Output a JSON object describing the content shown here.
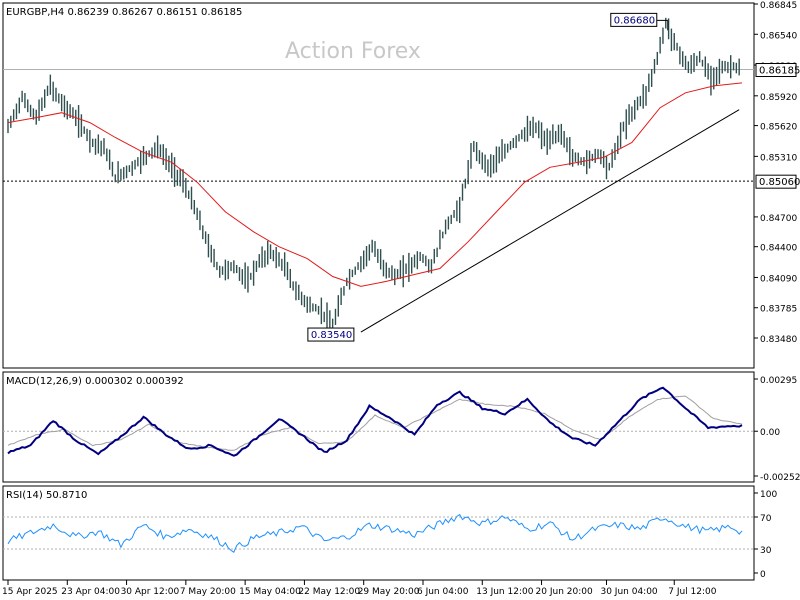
{
  "header": {
    "symbol_line": "EURGBP,H4  0.86239 0.86267 0.86151 0.86185",
    "watermark": "Action Forex"
  },
  "chart_data": [
    {
      "type": "candlestick",
      "title": "EURGBP,H4",
      "ylim": [
        0.8348,
        0.86845
      ],
      "yticks": [
        "0.86845",
        "0.86540",
        "0.86230",
        "0.85920",
        "0.85620",
        "0.85310",
        "0.84700",
        "0.84400",
        "0.84090",
        "0.83785",
        "0.83480"
      ],
      "xticks": [
        "15 Apr 2025",
        "23 Apr 04:00",
        "30 Apr 12:00",
        "7 May 20:00",
        "15 May 04:00",
        "22 May 12:00",
        "29 May 20:00",
        "6 Jun 04:00",
        "13 Jun 12:00",
        "20 Jun 20:00",
        "30 Jun 04:00",
        "7 Jul 12:00"
      ],
      "price_path": [
        [
          0,
          0.856
        ],
        [
          5,
          0.859
        ],
        [
          10,
          0.857
        ],
        [
          15,
          0.8602
        ],
        [
          19,
          0.8585
        ],
        [
          24,
          0.857
        ],
        [
          30,
          0.8545
        ],
        [
          34,
          0.854
        ],
        [
          38,
          0.851
        ],
        [
          44,
          0.852
        ],
        [
          48,
          0.853
        ],
        [
          53,
          0.854
        ],
        [
          58,
          0.852
        ],
        [
          62,
          0.8505
        ],
        [
          66,
          0.848
        ],
        [
          71,
          0.844
        ],
        [
          75,
          0.8415
        ],
        [
          80,
          0.842
        ],
        [
          85,
          0.8405
        ],
        [
          89,
          0.8425
        ],
        [
          93,
          0.8435
        ],
        [
          98,
          0.842
        ],
        [
          102,
          0.8395
        ],
        [
          107,
          0.838
        ],
        [
          111,
          0.8375
        ],
        [
          115,
          0.836
        ],
        [
          120,
          0.8405
        ],
        [
          124,
          0.842
        ],
        [
          129,
          0.844
        ],
        [
          133,
          0.842
        ],
        [
          137,
          0.841
        ],
        [
          142,
          0.842
        ],
        [
          146,
          0.843
        ],
        [
          150,
          0.842
        ],
        [
          155,
          0.846
        ],
        [
          160,
          0.848
        ],
        [
          165,
          0.854
        ],
        [
          170,
          0.852
        ],
        [
          174,
          0.853
        ],
        [
          179,
          0.8545
        ],
        [
          183,
          0.8555
        ],
        [
          187,
          0.856
        ],
        [
          191,
          0.8545
        ],
        [
          196,
          0.8555
        ],
        [
          200,
          0.853
        ],
        [
          205,
          0.8525
        ],
        [
          209,
          0.8535
        ],
        [
          213,
          0.852
        ],
        [
          218,
          0.856
        ],
        [
          222,
          0.858
        ],
        [
          226,
          0.8595
        ],
        [
          230,
          0.863
        ],
        [
          233,
          0.8665
        ],
        [
          237,
          0.864
        ],
        [
          241,
          0.862
        ],
        [
          245,
          0.863
        ],
        [
          249,
          0.861
        ],
        [
          253,
          0.862
        ],
        [
          257,
          0.8622
        ],
        [
          260,
          0.86185
        ]
      ],
      "ma_path": [
        [
          0,
          0.8565
        ],
        [
          10,
          0.857
        ],
        [
          19,
          0.8575
        ],
        [
          29,
          0.8565
        ],
        [
          38,
          0.855
        ],
        [
          48,
          0.8535
        ],
        [
          58,
          0.8525
        ],
        [
          67,
          0.8505
        ],
        [
          77,
          0.8475
        ],
        [
          87,
          0.8455
        ],
        [
          96,
          0.844
        ],
        [
          106,
          0.8428
        ],
        [
          115,
          0.841
        ],
        [
          125,
          0.84
        ],
        [
          134,
          0.8405
        ],
        [
          144,
          0.8412
        ],
        [
          153,
          0.8418
        ],
        [
          163,
          0.8445
        ],
        [
          173,
          0.8475
        ],
        [
          183,
          0.8505
        ],
        [
          192,
          0.852
        ],
        [
          202,
          0.8525
        ],
        [
          211,
          0.853
        ],
        [
          221,
          0.8545
        ],
        [
          231,
          0.858
        ],
        [
          240,
          0.8595
        ],
        [
          250,
          0.8602
        ],
        [
          260,
          0.8605
        ]
      ],
      "trendline": {
        "from": [
          125,
          0.8354
        ],
        "to": [
          259,
          0.8578
        ]
      },
      "labels": {
        "high": "0.86680",
        "low": "0.83540",
        "last": "0.86185",
        "level": "0.85060"
      },
      "high_value": 0.8668,
      "low_value": 0.8354,
      "level_value": 0.8506,
      "last_value": 0.86185,
      "n_bars": 260
    },
    {
      "type": "line",
      "title": "MACD(12,26,9) 0.000302 0.000392",
      "ylim": [
        -0.002529,
        0.00295
      ],
      "yticks": [
        "0.00295",
        "0.00",
        "-0.002529"
      ],
      "series": [
        {
          "name": "MACD",
          "values": [
            [
              0,
              -0.0012
            ],
            [
              8,
              -0.0008
            ],
            [
              16,
              0.0006
            ],
            [
              24,
              -0.0005
            ],
            [
              32,
              -0.0013
            ],
            [
              40,
              -0.0003
            ],
            [
              48,
              0.0008
            ],
            [
              56,
              -0.0002
            ],
            [
              64,
              -0.001
            ],
            [
              72,
              -0.0008
            ],
            [
              80,
              -0.0014
            ],
            [
              88,
              -0.0004
            ],
            [
              96,
              0.0007
            ],
            [
              104,
              -0.0002
            ],
            [
              112,
              -0.0012
            ],
            [
              120,
              -0.0005
            ],
            [
              128,
              0.0014
            ],
            [
              136,
              0.0007
            ],
            [
              144,
              -0.0002
            ],
            [
              152,
              0.0015
            ],
            [
              160,
              0.0022
            ],
            [
              168,
              0.0013
            ],
            [
              176,
              0.001
            ],
            [
              184,
              0.0018
            ],
            [
              192,
              0.0005
            ],
            [
              200,
              -0.0004
            ],
            [
              208,
              -0.0008
            ],
            [
              216,
              0.0005
            ],
            [
              224,
              0.0018
            ],
            [
              232,
              0.0025
            ],
            [
              240,
              0.0013
            ],
            [
              248,
              0.0002
            ],
            [
              256,
              0.0003
            ],
            [
              260,
              0.000302
            ]
          ]
        },
        {
          "name": "Signal",
          "values": [
            [
              0,
              -0.0008
            ],
            [
              10,
              -0.0002
            ],
            [
              20,
              0.0001
            ],
            [
              30,
              -0.0008
            ],
            [
              40,
              -0.0005
            ],
            [
              50,
              0.0004
            ],
            [
              60,
              -0.0006
            ],
            [
              70,
              -0.0009
            ],
            [
              80,
              -0.0011
            ],
            [
              90,
              -0.0002
            ],
            [
              100,
              0.0002
            ],
            [
              110,
              -0.0007
            ],
            [
              120,
              -0.0006
            ],
            [
              130,
              0.0009
            ],
            [
              140,
              0.0002
            ],
            [
              150,
              0.001
            ],
            [
              160,
              0.0018
            ],
            [
              170,
              0.0015
            ],
            [
              180,
              0.0014
            ],
            [
              190,
              0.001
            ],
            [
              200,
              0.0001
            ],
            [
              210,
              -0.0005
            ],
            [
              220,
              0.0008
            ],
            [
              230,
              0.0018
            ],
            [
              240,
              0.002
            ],
            [
              250,
              0.0007
            ],
            [
              260,
              0.000392
            ]
          ]
        }
      ]
    },
    {
      "type": "line",
      "title": "RSI(14) 50.8710",
      "ylim": [
        0,
        100
      ],
      "yticks": [
        "100",
        "70",
        "30",
        "0"
      ],
      "levels": [
        70,
        30
      ],
      "series": [
        {
          "name": "RSI",
          "values": [
            [
              0,
              40
            ],
            [
              8,
              50
            ],
            [
              16,
              60
            ],
            [
              24,
              45
            ],
            [
              32,
              52
            ],
            [
              40,
              35
            ],
            [
              48,
              60
            ],
            [
              56,
              45
            ],
            [
              64,
              55
            ],
            [
              72,
              45
            ],
            [
              80,
              30
            ],
            [
              88,
              45
            ],
            [
              96,
              50
            ],
            [
              104,
              58
            ],
            [
              112,
              40
            ],
            [
              120,
              45
            ],
            [
              128,
              60
            ],
            [
              136,
              55
            ],
            [
              144,
              48
            ],
            [
              152,
              60
            ],
            [
              160,
              72
            ],
            [
              168,
              62
            ],
            [
              176,
              70
            ],
            [
              184,
              55
            ],
            [
              192,
              62
            ],
            [
              200,
              42
            ],
            [
              208,
              55
            ],
            [
              216,
              60
            ],
            [
              224,
              55
            ],
            [
              232,
              70
            ],
            [
              240,
              58
            ],
            [
              248,
              52
            ],
            [
              256,
              58
            ],
            [
              260,
              50.871
            ]
          ]
        }
      ]
    }
  ]
}
